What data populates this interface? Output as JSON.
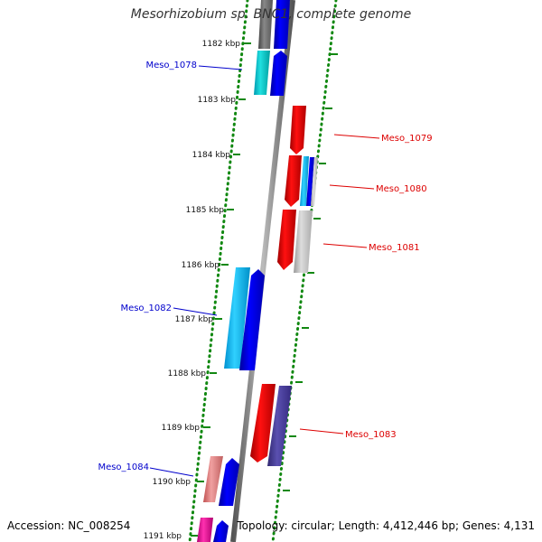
{
  "title": "Mesorhizobium sp. BNC1, complete genome",
  "footer": {
    "accession": "Accession: NC_008254",
    "topology": "Topology: circular; Length: 4,412,446 bp; Genes: 4,131"
  },
  "ruler_labels": [
    "1182 kbp",
    "1183 kbp",
    "1184 kbp",
    "1185 kbp",
    "1186 kbp",
    "1187 kbp",
    "1188 kbp",
    "1189 kbp",
    "1190 kbp",
    "1191 kbp"
  ],
  "genes": [
    {
      "name": "Meso_1078",
      "strand": "forward",
      "color": "#0000cc"
    },
    {
      "name": "Meso_1079",
      "strand": "reverse",
      "color": "#dd0000"
    },
    {
      "name": "Meso_1080",
      "strand": "reverse",
      "color": "#dd0000"
    },
    {
      "name": "Meso_1081",
      "strand": "reverse",
      "color": "#dd0000"
    },
    {
      "name": "Meso_1082",
      "strand": "forward",
      "color": "#0000cc"
    },
    {
      "name": "Meso_1083",
      "strand": "reverse",
      "color": "#dd0000"
    },
    {
      "name": "Meso_1084",
      "strand": "forward",
      "color": "#0000cc"
    }
  ]
}
